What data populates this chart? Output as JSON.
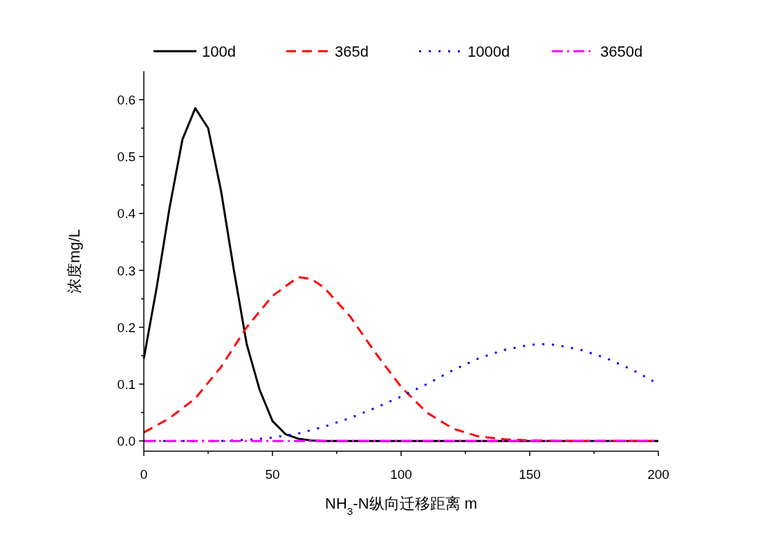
{
  "chart_data": {
    "type": "line",
    "xlabel": "NH$_{3}$-N纵向迁移距离 m",
    "ylabel": "浓度mg/L",
    "xlim": [
      0,
      200
    ],
    "ylim": [
      -0.018,
      0.65
    ],
    "xticks": [
      0,
      50,
      100,
      150,
      200
    ],
    "yticks": [
      {
        "value": 0,
        "label": "0.0"
      },
      0.1,
      0.2,
      0.3,
      0.4,
      0.5,
      0.6
    ],
    "grid": false,
    "legend": "top",
    "series": [
      {
        "name": "100d",
        "color": "#000000",
        "line_style": "solid",
        "x": [
          0,
          5,
          10,
          15,
          20,
          25,
          30,
          35,
          40,
          45,
          50,
          55,
          60,
          65,
          70,
          80,
          90,
          100,
          120,
          140,
          160,
          180,
          200
        ],
        "values": [
          0.145,
          0.27,
          0.41,
          0.53,
          0.585,
          0.55,
          0.44,
          0.3,
          0.17,
          0.09,
          0.035,
          0.012,
          0.004,
          0.001,
          0,
          0,
          0,
          0,
          0,
          0,
          0,
          0,
          0
        ]
      },
      {
        "name": "365d",
        "color": "#ff0000",
        "line_style": "dashed",
        "x": [
          0,
          10,
          20,
          30,
          40,
          50,
          60,
          65,
          70,
          80,
          90,
          100,
          110,
          120,
          130,
          140,
          150,
          160,
          180,
          200
        ],
        "values": [
          0.015,
          0.04,
          0.075,
          0.13,
          0.2,
          0.255,
          0.288,
          0.285,
          0.27,
          0.22,
          0.155,
          0.095,
          0.05,
          0.022,
          0.008,
          0.003,
          0.001,
          0,
          0,
          0
        ]
      },
      {
        "name": "1000d",
        "color": "#0000ff",
        "line_style": "dotted",
        "x": [
          0,
          10,
          20,
          30,
          40,
          50,
          60,
          70,
          80,
          90,
          100,
          110,
          120,
          130,
          140,
          150,
          155,
          160,
          170,
          180,
          190,
          198
        ],
        "values": [
          0,
          0,
          0,
          0,
          0.002,
          0.006,
          0.013,
          0.025,
          0.04,
          0.058,
          0.078,
          0.1,
          0.124,
          0.145,
          0.16,
          0.169,
          0.17,
          0.169,
          0.16,
          0.145,
          0.125,
          0.105
        ]
      },
      {
        "name": "3650d",
        "color": "#ff00ff",
        "line_style": "dashdot",
        "x": [
          0,
          50,
          100,
          150,
          200
        ],
        "values": [
          0,
          0,
          0,
          0,
          0
        ]
      }
    ]
  }
}
